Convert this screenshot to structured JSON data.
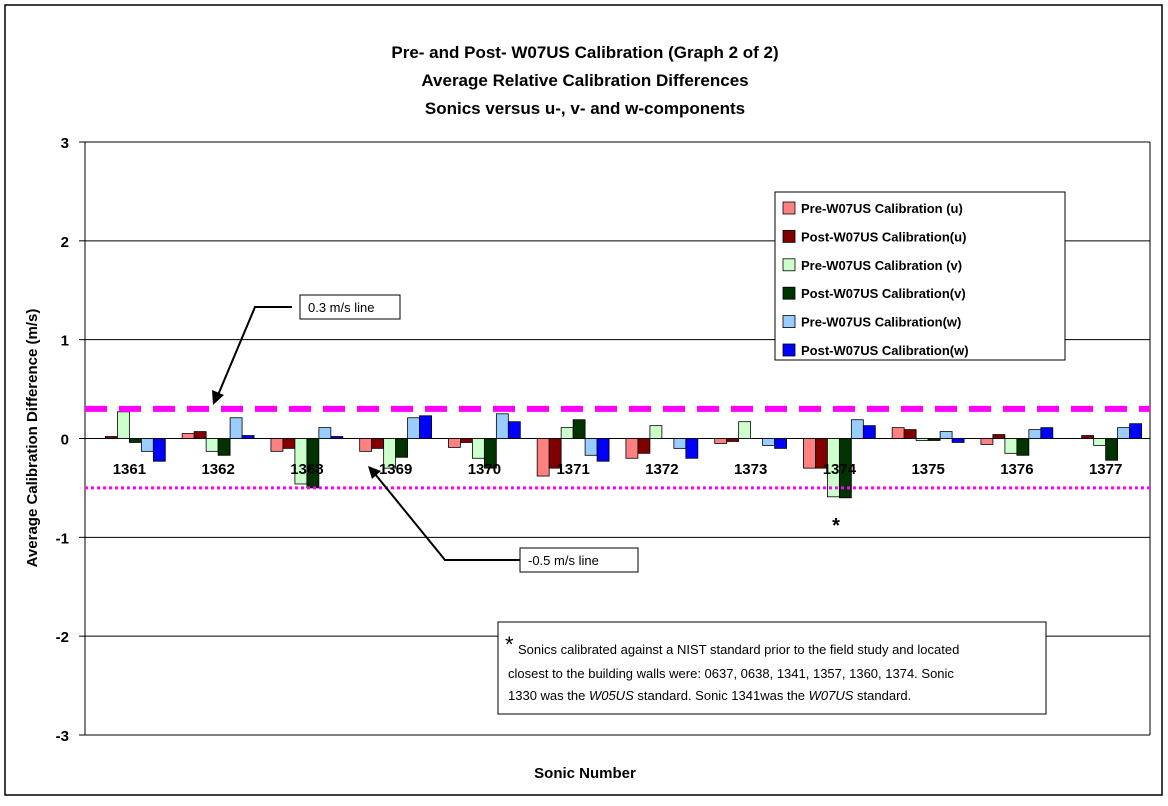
{
  "chart_data": {
    "type": "bar",
    "title_lines": [
      "Pre- and Post- W07US Calibration (Graph 2 of 2)",
      "Average Relative Calibration Differences",
      "Sonics versus u-, v- and w-components"
    ],
    "x_label": "Sonic Number",
    "y_label": "Average Calibration Difference (m/s)",
    "categories": [
      "1361",
      "1362",
      "1368",
      "1369",
      "1370",
      "1371",
      "1372",
      "1373",
      "1374",
      "1375",
      "1376",
      "1377"
    ],
    "series": [
      {
        "name": "Pre-W07US Calibration (u)",
        "color": "#ff8080",
        "values": [
          0,
          0.05,
          -0.13,
          -0.13,
          -0.09,
          -0.38,
          -0.2,
          -0.05,
          -0.3,
          0.11,
          -0.06,
          0
        ]
      },
      {
        "name": "Post-W07US Calibration(u)",
        "color": "#800000",
        "values": [
          0.02,
          0.07,
          -0.1,
          -0.1,
          -0.04,
          -0.3,
          -0.15,
          -0.03,
          -0.3,
          0.09,
          0.04,
          0.03
        ]
      },
      {
        "name": "Pre-W07US Calibration (v)",
        "color": "#ccffcc",
        "values": [
          0.27,
          -0.13,
          -0.46,
          -0.3,
          -0.2,
          0.11,
          0.13,
          0.17,
          -0.59,
          -0.02,
          -0.15,
          -0.07
        ]
      },
      {
        "name": "Post-W07US Calibration(v)",
        "color": "#003300",
        "values": [
          -0.04,
          -0.17,
          -0.5,
          -0.19,
          -0.3,
          0.19,
          0,
          0,
          -0.6,
          -0.02,
          -0.17,
          -0.22
        ]
      },
      {
        "name": "Pre-W07US Calibration(w)",
        "color": "#99ccff",
        "values": [
          -0.13,
          0.21,
          0.11,
          0.21,
          0.25,
          -0.17,
          -0.1,
          -0.07,
          0.19,
          0.07,
          0.09,
          0.11
        ]
      },
      {
        "name": "Post-W07US Calibration(w)",
        "color": "#0000ff",
        "values": [
          -0.23,
          0.03,
          0.02,
          0.23,
          0.17,
          -0.23,
          -0.2,
          -0.1,
          0.13,
          -0.04,
          0.11,
          0.15
        ]
      }
    ],
    "ylim": [
      -3,
      3
    ],
    "yticks": [
      -3,
      -2,
      -1,
      0,
      1,
      2,
      3
    ],
    "grid": true,
    "reference_lines": [
      {
        "value": 0.3,
        "label": "0.3 m/s line",
        "color": "#ff00ff",
        "style": "dashed"
      },
      {
        "value": -0.5,
        "label": "-0.5 m/s line",
        "color": "#ff00ff",
        "style": "dotted"
      }
    ],
    "marker_text": "*",
    "note": {
      "marker": "*",
      "lines": [
        [
          {
            "text": "Sonics calibrated against a NIST standard prior to the field study and located",
            "italic": false
          }
        ],
        [
          {
            "text": "closest to the building walls were:  0637, 0638, 1341, 1357, 1360, 1374.  Sonic",
            "italic": false
          }
        ],
        [
          {
            "text": "1330 was the ",
            "italic": false
          },
          {
            "text": "W05US",
            "italic": true
          },
          {
            "text": " standard.  Sonic 1341was the ",
            "italic": false
          },
          {
            "text": "W07US",
            "italic": true
          },
          {
            "text": " standard.",
            "italic": false
          }
        ]
      ]
    }
  }
}
